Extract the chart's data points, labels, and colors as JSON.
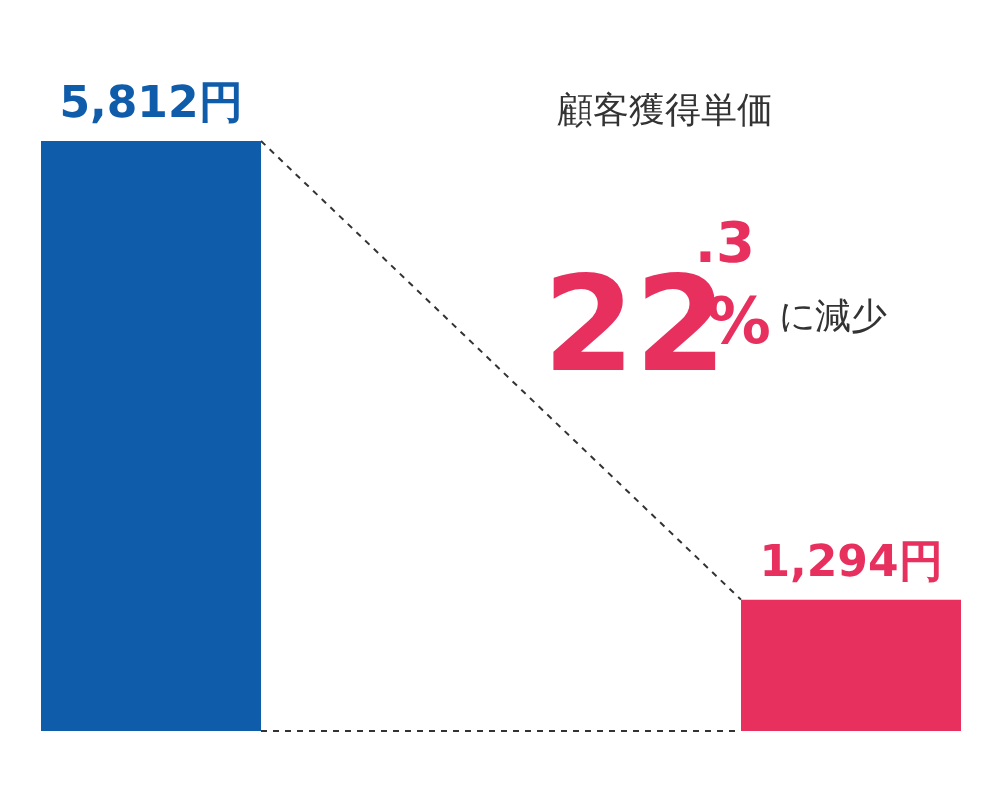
{
  "chart_data": {
    "type": "bar",
    "categories": [
      null,
      null
    ],
    "values": [
      5812,
      1294
    ],
    "colors": [
      "#0f5cab",
      "#e8305f"
    ],
    "value_labels": [
      "5,812円",
      "1,294円"
    ],
    "annotations": [
      "顧客獲得単価",
      "22.3%に減少"
    ]
  }
}
